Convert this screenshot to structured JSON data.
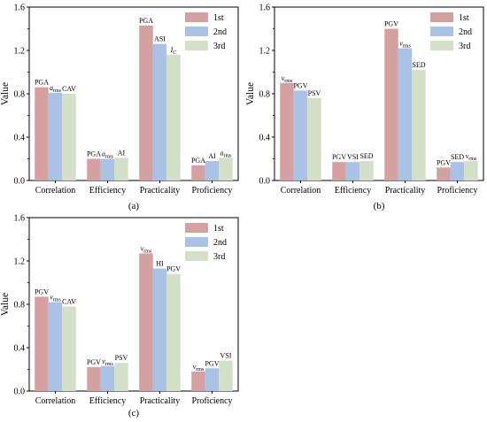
{
  "chart_data": [
    {
      "type": "bar",
      "panel_label": "(a)",
      "ylabel": "Value",
      "ylim": [
        0,
        1.6
      ],
      "yticks": [
        "0.0",
        "0.4",
        "0.8",
        "1.2",
        "1.6"
      ],
      "grid": false,
      "legend_position": "top-right",
      "categories": [
        "Correlation",
        "Efficiency",
        "Practicality",
        "Proficiency"
      ],
      "series": [
        {
          "name": "1st",
          "color": "#d4a0a0",
          "values": [
            0.86,
            0.2,
            1.43,
            0.14
          ],
          "labels": [
            "PGA",
            "PGA",
            "PGA",
            "PGA"
          ]
        },
        {
          "name": "2nd",
          "color": "#a9c2e6",
          "values": [
            0.81,
            0.2,
            1.26,
            0.18
          ],
          "labels": [
            "a_rms",
            "a_rms",
            "ASI",
            "AI"
          ]
        },
        {
          "name": "3rd",
          "color": "#d3e0c7",
          "values": [
            0.8,
            0.21,
            1.16,
            0.21
          ],
          "labels": [
            "CAV",
            "AI",
            "I_C",
            "a_rms"
          ]
        }
      ]
    },
    {
      "type": "bar",
      "panel_label": "(b)",
      "ylabel": "Value",
      "ylim": [
        0,
        1.6
      ],
      "yticks": [
        "0.0",
        "0.4",
        "0.8",
        "1.2",
        "1.6"
      ],
      "grid": false,
      "legend_position": "top-right",
      "categories": [
        "Correlation",
        "Efficiency",
        "Practicality",
        "Proficiency"
      ],
      "series": [
        {
          "name": "1st",
          "color": "#d4a0a0",
          "values": [
            0.9,
            0.17,
            1.4,
            0.12
          ],
          "labels": [
            "v_rms",
            "PGV",
            "PGV",
            "PGV"
          ]
        },
        {
          "name": "2nd",
          "color": "#a9c2e6",
          "values": [
            0.83,
            0.17,
            1.22,
            0.17
          ],
          "labels": [
            "PGV",
            "VSI",
            "v_rms",
            "SED"
          ]
        },
        {
          "name": "3rd",
          "color": "#d3e0c7",
          "values": [
            0.76,
            0.18,
            1.02,
            0.18
          ],
          "labels": [
            "PSV",
            "SED",
            "SED",
            "v_rms"
          ]
        }
      ]
    },
    {
      "type": "bar",
      "panel_label": "(c)",
      "ylabel": "Value",
      "ylim": [
        0,
        1.6
      ],
      "yticks": [
        "0.0",
        "0.4",
        "0.8",
        "1.2",
        "1.6"
      ],
      "grid": false,
      "legend_position": "top-right",
      "categories": [
        "Correlation",
        "Efficiency",
        "Practicality",
        "Proficiency"
      ],
      "series": [
        {
          "name": "1st",
          "color": "#d4a0a0",
          "values": [
            0.87,
            0.22,
            1.27,
            0.18
          ],
          "labels": [
            "PGV",
            "PGV",
            "v_rms",
            "v_rms"
          ]
        },
        {
          "name": "2nd",
          "color": "#a9c2e6",
          "values": [
            0.82,
            0.23,
            1.13,
            0.21
          ],
          "labels": [
            "v_rms",
            "v_rms",
            "HI",
            "PGV"
          ]
        },
        {
          "name": "3rd",
          "color": "#d3e0c7",
          "values": [
            0.78,
            0.26,
            1.08,
            0.28
          ],
          "labels": [
            "CAV",
            "PSV",
            "PGV",
            "VSI"
          ]
        }
      ]
    }
  ]
}
